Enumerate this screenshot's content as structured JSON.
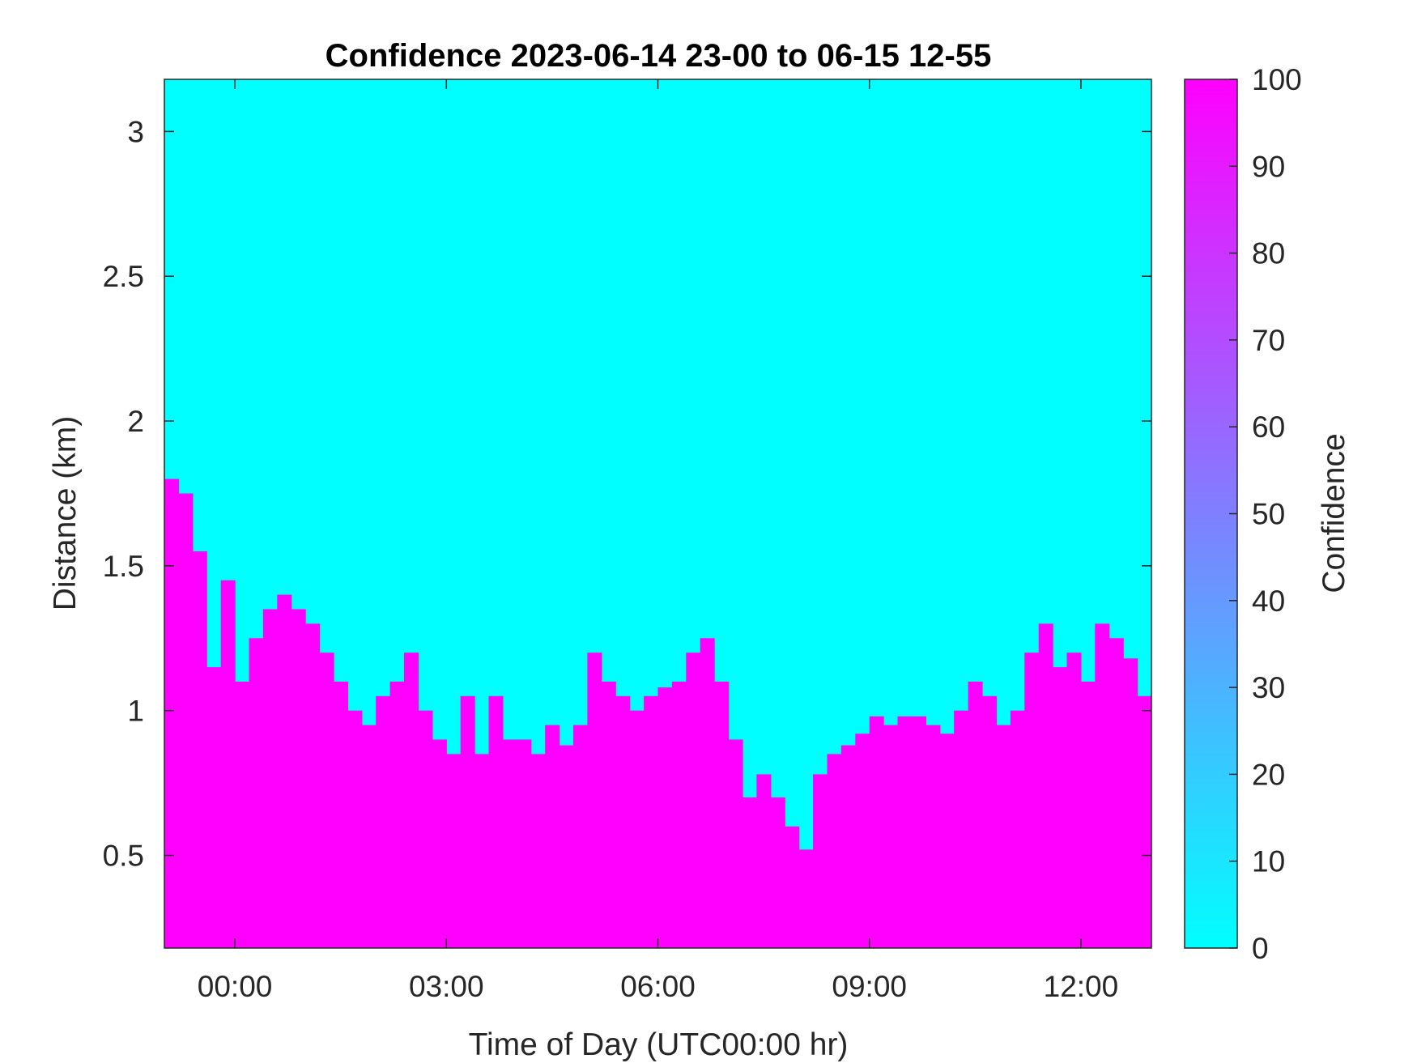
{
  "chart_data": {
    "type": "heatmap",
    "title": "Confidence 2023-06-14 23-00 to 06-15 12-55",
    "xlabel": "Time of Day (UTC00:00 hr)",
    "ylabel": "Distance (km)",
    "colorbar_label": "Confidence",
    "x_range_hours": [
      -1.0,
      13.0
    ],
    "ylim": [
      0.18,
      3.18
    ],
    "x_ticks": [
      {
        "value": 0,
        "label": "00:00"
      },
      {
        "value": 3,
        "label": "03:00"
      },
      {
        "value": 6,
        "label": "06:00"
      },
      {
        "value": 9,
        "label": "09:00"
      },
      {
        "value": 12,
        "label": "12:00"
      }
    ],
    "y_ticks": [
      {
        "value": 0.5,
        "label": "0.5"
      },
      {
        "value": 1.0,
        "label": "1"
      },
      {
        "value": 1.5,
        "label": "1.5"
      },
      {
        "value": 2.0,
        "label": "2"
      },
      {
        "value": 2.5,
        "label": "2.5"
      },
      {
        "value": 3.0,
        "label": "3"
      }
    ],
    "colorbar": {
      "range": [
        0,
        100
      ],
      "ticks": [
        {
          "value": 0,
          "label": "0"
        },
        {
          "value": 10,
          "label": "10"
        },
        {
          "value": 20,
          "label": "20"
        },
        {
          "value": 30,
          "label": "30"
        },
        {
          "value": 40,
          "label": "40"
        },
        {
          "value": 50,
          "label": "50"
        },
        {
          "value": 60,
          "label": "60"
        },
        {
          "value": 70,
          "label": "70"
        },
        {
          "value": 80,
          "label": "80"
        },
        {
          "value": 90,
          "label": "90"
        },
        {
          "value": 100,
          "label": "100"
        }
      ],
      "color_low": "#00ffff",
      "color_high": "#ff00ff"
    },
    "values_description": "binary confidence field: 100 (magenta) below the boundary layer top, 0 (cyan) above",
    "boundary_top_km": {
      "x_hours": [
        -1.0,
        -0.8,
        -0.6,
        -0.4,
        -0.2,
        0.0,
        0.2,
        0.4,
        0.6,
        0.8,
        1.0,
        1.2,
        1.4,
        1.6,
        1.8,
        2.0,
        2.2,
        2.4,
        2.6,
        2.8,
        3.0,
        3.2,
        3.4,
        3.6,
        3.8,
        4.0,
        4.2,
        4.4,
        4.6,
        4.8,
        5.0,
        5.2,
        5.4,
        5.6,
        5.8,
        6.0,
        6.2,
        6.4,
        6.6,
        6.8,
        7.0,
        7.2,
        7.4,
        7.6,
        7.8,
        8.0,
        8.2,
        8.4,
        8.6,
        8.8,
        9.0,
        9.2,
        9.4,
        9.6,
        9.8,
        10.0,
        10.2,
        10.4,
        10.6,
        10.8,
        11.0,
        11.2,
        11.4,
        11.6,
        11.8,
        12.0,
        12.2,
        12.4,
        12.6,
        12.8,
        13.0
      ],
      "y_km": [
        1.8,
        1.75,
        1.55,
        1.15,
        1.45,
        1.1,
        1.25,
        1.35,
        1.4,
        1.35,
        1.3,
        1.2,
        1.1,
        1.0,
        0.95,
        1.05,
        1.1,
        1.2,
        1.0,
        0.9,
        0.85,
        1.05,
        0.85,
        1.05,
        0.9,
        0.9,
        0.85,
        0.95,
        0.88,
        0.95,
        1.2,
        1.1,
        1.05,
        1.0,
        1.05,
        1.08,
        1.1,
        1.2,
        1.25,
        1.1,
        0.9,
        0.7,
        0.78,
        0.7,
        0.6,
        0.52,
        0.78,
        0.85,
        0.88,
        0.92,
        0.98,
        0.95,
        0.98,
        0.98,
        0.95,
        0.92,
        1.0,
        1.1,
        1.05,
        0.95,
        1.0,
        1.2,
        1.3,
        1.15,
        1.2,
        1.1,
        1.3,
        1.25,
        1.18,
        1.05,
        1.05
      ]
    },
    "grid": false
  }
}
